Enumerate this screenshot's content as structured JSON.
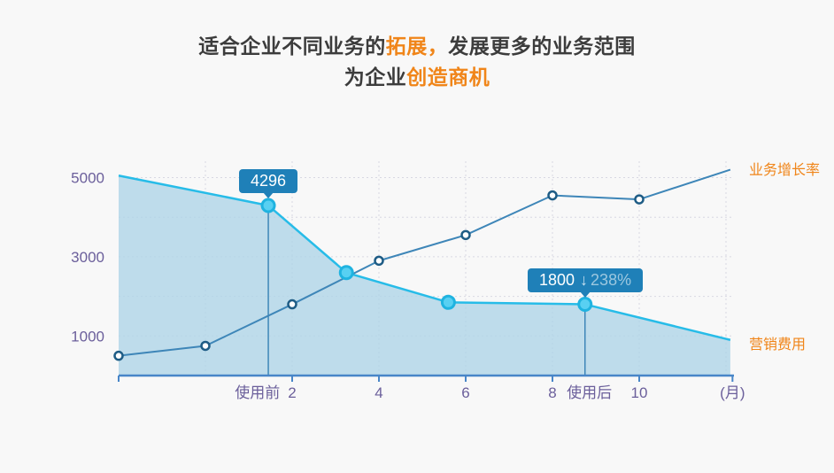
{
  "title": {
    "line1": [
      {
        "text": "适合企业不同业务的",
        "accent": false
      },
      {
        "text": "拓展，",
        "accent": true
      },
      {
        "text": "发展更多的业务范围",
        "accent": false
      }
    ],
    "line2": [
      {
        "text": "为企业",
        "accent": false
      },
      {
        "text": "创造商机",
        "accent": true
      }
    ]
  },
  "colors": {
    "accent_orange": "#F08519",
    "title_dark": "#3C3C3C",
    "axis_text": "#6B5F9B",
    "axis_line": "#4886C8",
    "growth_line": "#3E86B8",
    "growth_marker_border": "#1E5C85",
    "cost_line": "#27BCE8",
    "cost_area": "#AFD4E7",
    "cost_marker_fill": "#58D0F2",
    "cost_marker_stroke": "#1FB3E0",
    "tooltip_bg": "#1F80B8",
    "tooltip_secondary": "#9CC7DF",
    "grid": "#D8D8E2",
    "background": "#F8F8F8"
  },
  "icons": {
    "arrow_down_glyph": "↓"
  },
  "chart_data": {
    "type": "line",
    "x_unit": "月",
    "x_range": [
      -2,
      12.15
    ],
    "y_range": [
      0,
      5300
    ],
    "y_tick_labels": [
      5000,
      3000,
      1000
    ],
    "x_tick_marks": [
      -2,
      2,
      4,
      6,
      8,
      10,
      12.15
    ],
    "x_axis_labels": [
      {
        "text": "使用前",
        "x": 1.2
      },
      {
        "text": "2",
        "x": 2
      },
      {
        "text": "4",
        "x": 4
      },
      {
        "text": "6",
        "x": 6
      },
      {
        "text": "8",
        "x": 8
      },
      {
        "text": "使用后",
        "x": 8.85
      },
      {
        "text": "10",
        "x": 10
      },
      {
        "text": "(月)",
        "x": 12.15
      }
    ],
    "grid": {
      "vertical_x": [
        0,
        2,
        4,
        6,
        8,
        10,
        12
      ],
      "horizontal_y": [
        1000,
        2000,
        3000,
        4000,
        5000
      ]
    },
    "legend_position": "right-of-line-ends",
    "series": [
      {
        "name": "营销费用",
        "type": "area",
        "points": [
          {
            "x": -2,
            "y": 5050,
            "marker": false
          },
          {
            "x": 1.45,
            "y": 4296,
            "marker": true,
            "drop_line": true
          },
          {
            "x": 3.25,
            "y": 2600,
            "marker": true
          },
          {
            "x": 5.6,
            "y": 1850,
            "marker": true
          },
          {
            "x": 8.75,
            "y": 1800,
            "marker": true,
            "drop_line": true
          },
          {
            "x": 12.1,
            "y": 900,
            "marker": false
          }
        ]
      },
      {
        "name": "业务增长率",
        "type": "line",
        "points": [
          {
            "x": -2,
            "y": 500,
            "marker": true
          },
          {
            "x": 0,
            "y": 750,
            "marker": true
          },
          {
            "x": 2,
            "y": 1800,
            "marker": true
          },
          {
            "x": 4,
            "y": 2900,
            "marker": true
          },
          {
            "x": 6,
            "y": 3550,
            "marker": true
          },
          {
            "x": 8,
            "y": 4550,
            "marker": true
          },
          {
            "x": 10,
            "y": 4450,
            "marker": true
          },
          {
            "x": 12.1,
            "y": 5200,
            "marker": false
          }
        ]
      }
    ],
    "annotations": [
      {
        "value": "4296",
        "series": 0,
        "point": 1
      },
      {
        "value": "1800",
        "change": "238%",
        "change_direction": "down",
        "series": 0,
        "point": 4
      }
    ]
  }
}
